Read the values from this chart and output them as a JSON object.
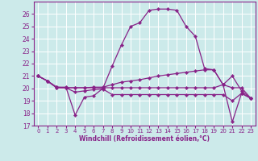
{
  "background_color": "#cceaea",
  "grid_color": "#ffffff",
  "line_color": "#882288",
  "marker_color": "#882288",
  "xlabel": "Windchill (Refroidissement éolien,°C)",
  "xlim": [
    -0.5,
    23.5
  ],
  "ylim": [
    17,
    27
  ],
  "yticks": [
    17,
    18,
    19,
    20,
    21,
    22,
    23,
    24,
    25,
    26
  ],
  "xticks": [
    0,
    1,
    2,
    3,
    4,
    5,
    6,
    7,
    8,
    9,
    10,
    11,
    12,
    13,
    14,
    15,
    16,
    17,
    18,
    19,
    20,
    21,
    22,
    23
  ],
  "lines": [
    {
      "x": [
        0,
        1,
        2,
        3,
        4,
        5,
        6,
        7,
        8,
        9,
        10,
        11,
        12,
        13,
        14,
        15,
        16,
        17,
        18,
        19,
        20,
        21,
        22,
        23
      ],
      "y": [
        21.0,
        20.6,
        20.1,
        20.1,
        17.85,
        19.3,
        19.4,
        20.0,
        21.8,
        23.5,
        25.0,
        25.3,
        26.3,
        26.4,
        26.4,
        26.3,
        25.0,
        24.2,
        21.6,
        21.5,
        20.3,
        17.3,
        19.6,
        19.2
      ]
    },
    {
      "x": [
        0,
        1,
        2,
        3,
        4,
        5,
        6,
        7,
        8,
        9,
        10,
        11,
        12,
        13,
        14,
        15,
        16,
        17,
        18,
        19,
        20,
        21,
        22,
        23
      ],
      "y": [
        21.0,
        20.6,
        20.1,
        20.05,
        20.05,
        20.05,
        20.1,
        20.1,
        20.3,
        20.5,
        20.6,
        20.7,
        20.85,
        21.0,
        21.1,
        21.2,
        21.3,
        21.4,
        21.5,
        21.5,
        20.3,
        21.0,
        19.8,
        19.2
      ]
    },
    {
      "x": [
        0,
        1,
        2,
        3,
        4,
        5,
        6,
        7,
        8,
        9,
        10,
        11,
        12,
        13,
        14,
        15,
        16,
        17,
        18,
        19,
        20,
        21,
        22,
        23
      ],
      "y": [
        21.0,
        20.6,
        20.05,
        20.05,
        20.05,
        20.05,
        20.05,
        20.05,
        20.05,
        20.05,
        20.05,
        20.05,
        20.05,
        20.05,
        20.05,
        20.05,
        20.05,
        20.05,
        20.05,
        20.05,
        20.3,
        20.05,
        20.05,
        19.2
      ]
    },
    {
      "x": [
        0,
        1,
        2,
        3,
        4,
        5,
        6,
        7,
        8,
        9,
        10,
        11,
        12,
        13,
        14,
        15,
        16,
        17,
        18,
        19,
        20,
        21,
        22,
        23
      ],
      "y": [
        21.0,
        20.6,
        20.05,
        20.05,
        19.7,
        19.8,
        19.9,
        19.95,
        19.5,
        19.5,
        19.5,
        19.5,
        19.5,
        19.5,
        19.5,
        19.5,
        19.5,
        19.5,
        19.5,
        19.5,
        19.5,
        19.0,
        19.6,
        19.2
      ]
    }
  ]
}
